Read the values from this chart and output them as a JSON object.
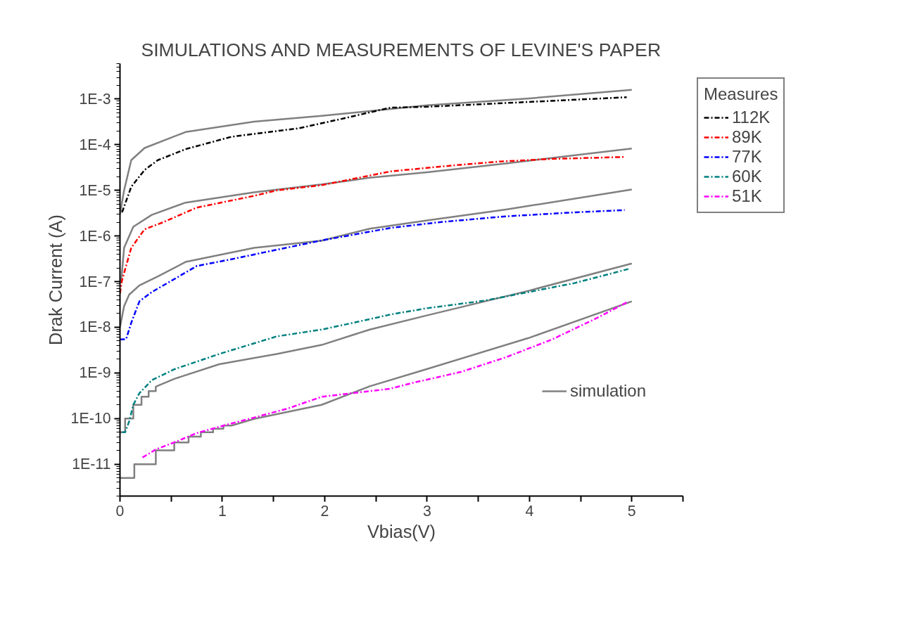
{
  "chart_data": {
    "type": "line",
    "title": "SIMULATIONS AND MEASUREMENTS OF LEVINE'S PAPER",
    "xlabel": "Vbias(V)",
    "ylabel": "Drak Current (A)",
    "legend_title": "Measures",
    "legend": "right",
    "grid": false,
    "log": "y",
    "xlim": [
      0,
      5.5
    ],
    "ylim": [
      2e-12,
      0.006
    ],
    "xticks": [
      0,
      {
        "value": 0.5,
        "label": null
      },
      1,
      {
        "value": 1.5,
        "label": null
      },
      2,
      {
        "value": 2.5,
        "label": null
      },
      3,
      {
        "value": 3.5,
        "label": null
      },
      4,
      {
        "value": 4.5,
        "label": null
      },
      5,
      {
        "value": 5.5,
        "label": null
      }
    ],
    "yticks": [
      {
        "value": 1e-11,
        "label": "1E-11"
      },
      {
        "value": 1e-10,
        "label": "1E-10"
      },
      {
        "value": 1e-09,
        "label": "1E-9"
      },
      {
        "value": 1e-08,
        "label": "1E-8"
      },
      {
        "value": 1e-07,
        "label": "1E-7"
      },
      {
        "value": 1e-06,
        "label": "1E-6"
      },
      {
        "value": 1e-05,
        "label": "1E-5"
      },
      {
        "value": 0.0001,
        "label": "1E-4"
      },
      {
        "value": 0.001,
        "label": "1E-3"
      }
    ],
    "series": [
      {
        "name": "simulation",
        "color": "#808080",
        "line_style": "solid",
        "x": [
          0,
          0.04,
          0.11,
          0.24,
          0.64,
          1.31,
          1.97,
          3,
          4,
          5
        ],
        "values": [
          3e-06,
          1e-05,
          4.6e-05,
          8.5e-05,
          0.00019,
          0.00032,
          0.00043,
          0.00073,
          0.00104,
          0.0016
        ]
      },
      {
        "color": "#808080",
        "line_style": "solid",
        "x": [
          0.01,
          0.04,
          0.13,
          0.31,
          0.64,
          1.31,
          1.97,
          2.44,
          3,
          3.77,
          4,
          5
        ],
        "values": [
          9.3e-08,
          5.5e-07,
          1.6e-06,
          2.9e-06,
          5.4e-06,
          9.1e-06,
          1.35e-05,
          1.9e-05,
          2.5e-05,
          3.9e-05,
          4.5e-05,
          8.3e-05
        ]
      },
      {
        "color": "#808080",
        "line_style": "solid",
        "x": [
          0,
          0.04,
          0.09,
          0.19,
          0.37,
          0.64,
          1.31,
          1.97,
          2.44,
          3,
          3.77,
          5
        ],
        "values": [
          1e-08,
          2.9e-08,
          5.2e-08,
          8.3e-08,
          1.3e-07,
          2.7e-07,
          5.5e-07,
          7.9e-07,
          1.45e-06,
          2.2e-06,
          3.8e-06,
          1.05e-05
        ]
      },
      {
        "color": "#808080",
        "line_style": "solid",
        "x": [
          0,
          0.05,
          0.05,
          0.13,
          0.13,
          0.21,
          0.21,
          0.28,
          0.28,
          0.35,
          0.35,
          0.53,
          0.97,
          1.53,
          1.97,
          2.44,
          2.99,
          3.99,
          5
        ],
        "values": [
          5e-11,
          5e-11,
          1e-10,
          1e-10,
          2e-10,
          2e-10,
          3e-10,
          3e-10,
          4e-10,
          4e-10,
          5e-10,
          7.4e-10,
          1.55e-09,
          2.6e-09,
          4.1e-09,
          8.9e-09,
          1.8e-08,
          6.3e-08,
          2.5e-07
        ]
      },
      {
        "color": "#808080",
        "line_style": "solid",
        "x": [
          0,
          0.14,
          0.14,
          0.35,
          0.35,
          0.53,
          0.53,
          0.67,
          0.67,
          0.79,
          0.79,
          0.91,
          0.91,
          1.01,
          1.01,
          1.09,
          1.31,
          1.97,
          2.44,
          2.99,
          3.99,
          5
        ],
        "values": [
          5e-12,
          5e-12,
          1e-11,
          1e-11,
          2e-11,
          2e-11,
          3e-11,
          3e-11,
          4e-11,
          4e-11,
          5e-11,
          5e-11,
          6e-11,
          6e-11,
          7e-11,
          7e-11,
          9.8e-11,
          2e-10,
          5.1e-10,
          1.2e-09,
          5.8e-09,
          3.7e-08
        ]
      },
      {
        "name": "112K",
        "color": "#000000",
        "line_style": "dashed",
        "x": [
          0.02,
          0.11,
          0.24,
          0.37,
          0.64,
          1.09,
          1.75,
          2.19,
          2.64,
          3,
          4,
          4.95
        ],
        "values": [
          3.3e-06,
          1.2e-05,
          2.8e-05,
          4.6e-05,
          8e-05,
          0.00015,
          0.00023,
          0.00038,
          0.00065,
          0.00068,
          0.00087,
          0.0011
        ]
      },
      {
        "name": "89K",
        "color": "#ff0000",
        "line_style": "dashed",
        "x": [
          0,
          0.02,
          0.11,
          0.24,
          0.42,
          0.75,
          1.31,
          1.53,
          1.97,
          2.64,
          3.11,
          3.71,
          4.22,
          4.93
        ],
        "values": [
          5.5e-08,
          1.07e-07,
          5.5e-07,
          1.4e-06,
          2e-06,
          4.2e-06,
          7.6e-06,
          1e-05,
          1.3e-05,
          2.6e-05,
          3.3e-05,
          4.3e-05,
          4.9e-05,
          5.4e-05
        ]
      },
      {
        "name": "77K",
        "color": "#0000ff",
        "line_style": "dashed",
        "x": [
          0,
          0.06,
          0.11,
          0.19,
          0.31,
          0.51,
          0.75,
          1.09,
          1.53,
          1.97,
          2.64,
          3.11,
          3.77,
          4.44,
          4.93
        ],
        "values": [
          5.4e-09,
          5.5e-09,
          1.26e-08,
          3.7e-08,
          5.9e-08,
          1.07e-07,
          2.2e-07,
          3.1e-07,
          5e-07,
          8e-07,
          1.5e-06,
          2e-06,
          2.7e-06,
          3.3e-06,
          3.7e-06
        ]
      },
      {
        "name": "60K",
        "color": "#008080",
        "line_style": "dashed",
        "x": [
          0.02,
          0.05,
          0.09,
          0.13,
          0.19,
          0.31,
          0.53,
          0.97,
          1.53,
          1.97,
          2.31,
          2.64,
          2.99,
          3.55,
          3.99,
          4.44,
          4.97
        ],
        "values": [
          5e-11,
          5e-11,
          8.7e-11,
          2e-10,
          3.6e-10,
          6.9e-10,
          1.2e-09,
          2.6e-09,
          6.3e-09,
          8.9e-09,
          1.3e-08,
          1.9e-08,
          2.6e-08,
          3.8e-08,
          5.9e-08,
          9.3e-08,
          1.9e-07
        ]
      },
      {
        "name": "51K",
        "color": "#ff00ff",
        "line_style": "dashed",
        "x": [
          0.22,
          0.35,
          0.53,
          0.75,
          1.04,
          1.31,
          1.64,
          1.97,
          2.64,
          2.88,
          3.33,
          3.77,
          4.22,
          4.66,
          4.97
        ],
        "values": [
          1.4e-11,
          2.1e-11,
          3e-11,
          4.8e-11,
          7.3e-11,
          1.05e-10,
          1.66e-10,
          3e-10,
          4.5e-10,
          6.2e-10,
          1.05e-09,
          2.2e-09,
          5.4e-09,
          1.6e-08,
          3.7e-08
        ]
      }
    ]
  }
}
